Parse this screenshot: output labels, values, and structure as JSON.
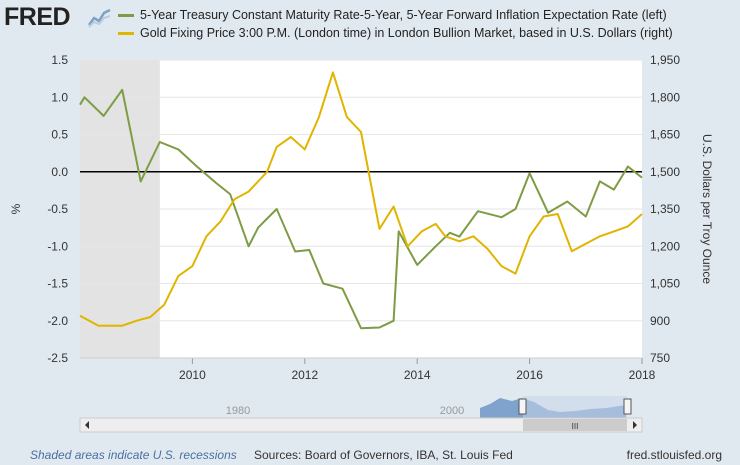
{
  "header": {
    "logo": "FRED",
    "logo_icon": "fred-chart-icon"
  },
  "legend": {
    "items": [
      {
        "label": "5-Year Treasury Constant Maturity Rate-5-Year, 5-Year Forward Inflation Expectation Rate (left)",
        "color": "#7d9c44"
      },
      {
        "label": "Gold Fixing Price 3:00 P.M. (London time) in London Bullion Market, based in U.S. Dollars (right)",
        "color": "#e1b400"
      }
    ]
  },
  "footer": {
    "recession_note": "Shaded areas indicate U.S. recessions",
    "sources": "Sources: Board of Governors, IBA, St. Louis Fed",
    "site": "fred.stlouisfed.org"
  },
  "navigator": {
    "labels": [
      "1980",
      "2000"
    ],
    "scroll_glyph": "III"
  },
  "chart_data": {
    "type": "line",
    "xlim": [
      2008,
      2018
    ],
    "x_ticks": [
      2010,
      2012,
      2014,
      2016,
      2018
    ],
    "y_left": {
      "label": "%",
      "ylim": [
        -2.5,
        1.5
      ],
      "ticks": [
        "1.5",
        "1.0",
        "0.5",
        "0.0",
        "-0.5",
        "-1.0",
        "-1.5",
        "-2.0",
        "-2.5"
      ]
    },
    "y_right": {
      "label": "U.S. Dollars per Troy Ounce",
      "ylim": [
        750,
        1950
      ],
      "ticks": [
        "1,950",
        "1,800",
        "1,650",
        "1,500",
        "1,350",
        "1,200",
        "1,050",
        "900",
        "750"
      ]
    },
    "recession": [
      2008,
      2009.42
    ],
    "zero_line": 0,
    "series": [
      {
        "name": "5-Year Treasury Constant Maturity Rate-5-Year, 5-Year Forward Inflation Expectation Rate (left)",
        "axis": "left",
        "color": "#7d9c44",
        "x": [
          2008.0,
          2008.08,
          2008.42,
          2008.75,
          2009.08,
          2009.42,
          2009.75,
          2010.08,
          2010.42,
          2010.67,
          2011.0,
          2011.17,
          2011.5,
          2011.83,
          2012.08,
          2012.33,
          2012.67,
          2013.0,
          2013.33,
          2013.58,
          2013.67,
          2014.0,
          2014.33,
          2014.58,
          2014.75,
          2015.08,
          2015.5,
          2015.75,
          2016.0,
          2016.33,
          2016.67,
          2017.0,
          2017.25,
          2017.5,
          2017.75,
          2018.0
        ],
        "y": [
          0.9,
          1.0,
          0.75,
          1.1,
          -0.13,
          0.4,
          0.3,
          0.07,
          -0.15,
          -0.3,
          -1.0,
          -0.75,
          -0.5,
          -1.07,
          -1.05,
          -1.5,
          -1.57,
          -2.1,
          -2.09,
          -2.0,
          -0.8,
          -1.25,
          -1.0,
          -0.82,
          -0.87,
          -0.53,
          -0.61,
          -0.5,
          -0.02,
          -0.55,
          -0.4,
          -0.6,
          -0.13,
          -0.24,
          0.07,
          -0.08
        ]
      },
      {
        "name": "Gold Fixing Price 3:00 P.M. (London time) in London Bullion Market, based in U.S. Dollars (right)",
        "axis": "right",
        "color": "#e1b400",
        "x": [
          2008.0,
          2008.33,
          2008.75,
          2009.0,
          2009.25,
          2009.5,
          2009.75,
          2010.0,
          2010.25,
          2010.5,
          2010.75,
          2011.0,
          2011.33,
          2011.5,
          2011.75,
          2012.0,
          2012.25,
          2012.5,
          2012.75,
          2013.0,
          2013.33,
          2013.58,
          2013.83,
          2014.08,
          2014.33,
          2014.5,
          2014.75,
          2015.0,
          2015.25,
          2015.5,
          2015.75,
          2016.0,
          2016.25,
          2016.5,
          2016.75,
          2017.0,
          2017.25,
          2017.5,
          2017.75,
          2018.0
        ],
        "y": [
          920,
          880,
          880,
          900,
          915,
          965,
          1080,
          1120,
          1240,
          1300,
          1390,
          1420,
          1500,
          1600,
          1640,
          1590,
          1720,
          1900,
          1720,
          1660,
          1270,
          1360,
          1200,
          1260,
          1290,
          1240,
          1220,
          1240,
          1190,
          1120,
          1090,
          1240,
          1320,
          1330,
          1180,
          1210,
          1240,
          1260,
          1280,
          1330
        ]
      }
    ]
  }
}
